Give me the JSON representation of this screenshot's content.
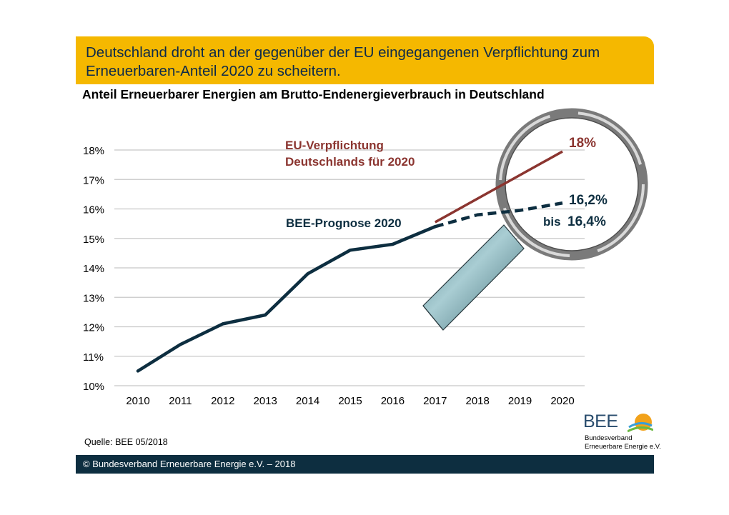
{
  "banner": {
    "line1": "Deutschland droht an der gegenüber der EU eingegangenen Verpflichtung zum",
    "line2": "Erneuerbaren-Anteil 2020 zu scheitern."
  },
  "source": "Quelle: BEE 05/2018",
  "footer": "© Bundesverband Erneuerbare Energie e.V. – 2018",
  "logo": {
    "word": "BEE",
    "line1": "Bundesverband",
    "line2": "Erneuerbare Energie e.V."
  },
  "chart_data": {
    "type": "line",
    "title": "Anteil Erneuerbarer Energien am Brutto-Endenergieverbrauch in Deutschland",
    "categories": [
      "2010",
      "2011",
      "2012",
      "2013",
      "2014",
      "2015",
      "2016",
      "2017",
      "2018",
      "2019",
      "2020"
    ],
    "ylim": [
      10,
      18
    ],
    "y_ticks": [
      "10%",
      "11%",
      "12%",
      "13%",
      "14%",
      "15%",
      "16%",
      "17%",
      "18%"
    ],
    "grid": "horizontal",
    "series": [
      {
        "name": "BEE-Prognose 2020",
        "color": "#0d2e40",
        "actual": [
          {
            "x": "2010",
            "y": 10.5
          },
          {
            "x": "2011",
            "y": 11.4
          },
          {
            "x": "2012",
            "y": 12.1
          },
          {
            "x": "2013",
            "y": 12.4
          },
          {
            "x": "2014",
            "y": 13.8
          },
          {
            "x": "2015",
            "y": 14.6
          },
          {
            "x": "2016",
            "y": 14.8
          },
          {
            "x": "2017",
            "y": 15.4
          }
        ],
        "forecast": [
          {
            "x": "2017",
            "y": 15.4
          },
          {
            "x": "2018",
            "y": 15.8
          },
          {
            "x": "2019",
            "y": 15.95
          },
          {
            "x": "2020",
            "y": 16.2
          }
        ]
      },
      {
        "name": "EU-Verpflichtung Deutschlands für 2020",
        "color": "#8b3530",
        "points": [
          {
            "x": "2017",
            "y": 15.55
          },
          {
            "x": "2020",
            "y": 17.95
          }
        ]
      }
    ],
    "annotations": {
      "eu_line1": "EU-Verpflichtung",
      "eu_line2": "Deutschlands für 2020",
      "eu_value": "18%",
      "bee_label": "BEE-Prognose 2020",
      "bee_value": "16,2%",
      "bee_bis": "bis",
      "bee_value2": "16,4%"
    },
    "colors": {
      "grid": "#c8c8c8",
      "magnifier_handle": "#7ea6ad"
    }
  }
}
